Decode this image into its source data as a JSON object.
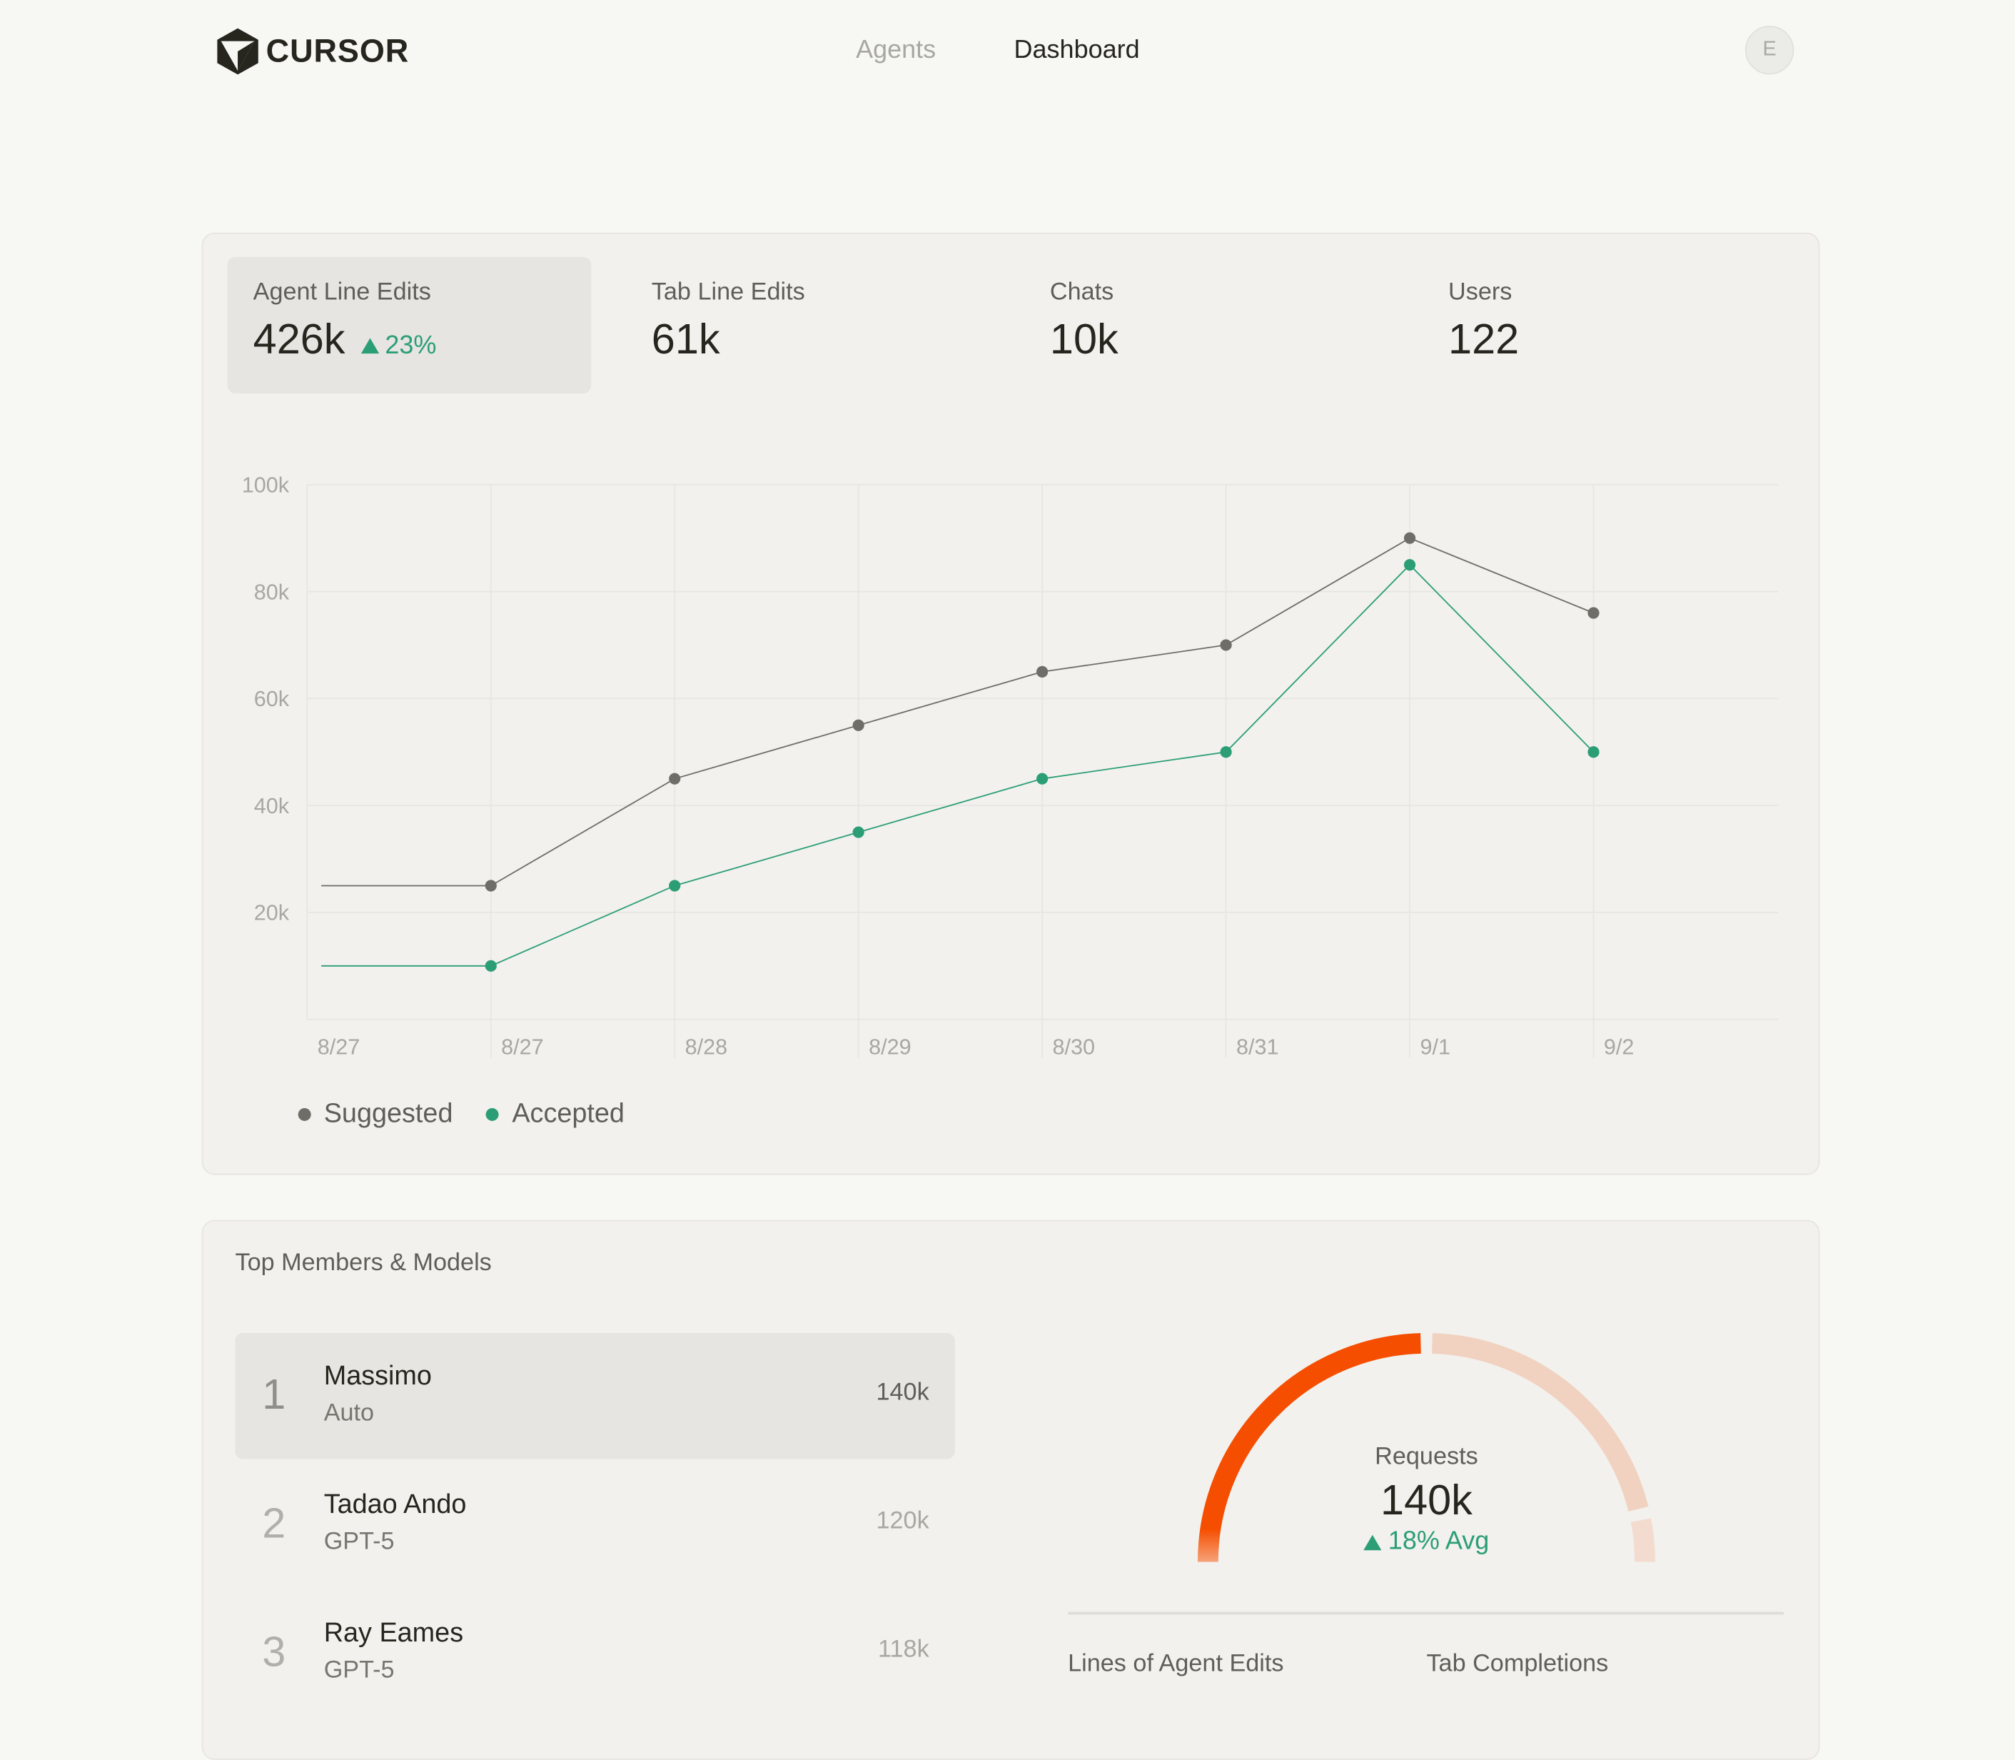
{
  "header": {
    "brand": "CURSOR",
    "nav": [
      {
        "label": "Agents",
        "active": false
      },
      {
        "label": "Dashboard",
        "active": true
      }
    ],
    "avatar_initial": "E"
  },
  "stats": [
    {
      "label": "Agent Line Edits",
      "value": "426k",
      "delta": "23%",
      "selected": true
    },
    {
      "label": "Tab Line Edits",
      "value": "61k"
    },
    {
      "label": "Chats",
      "value": "10k"
    },
    {
      "label": "Users",
      "value": "122"
    }
  ],
  "colors": {
    "suggested": "#6e6d68",
    "accepted": "#2c9e76",
    "gauge_fill": "#f54e00",
    "gauge_track": "#f1d2c0",
    "delta": "#2c9e76"
  },
  "chart_data": {
    "type": "line",
    "x": [
      "8/27",
      "8/27",
      "8/28",
      "8/29",
      "8/30",
      "8/31",
      "9/1",
      "9/2"
    ],
    "series": [
      {
        "name": "Suggested",
        "values": [
          25000,
          25000,
          45000,
          55000,
          65000,
          70000,
          90000,
          76000
        ]
      },
      {
        "name": "Accepted",
        "values": [
          10000,
          10000,
          25000,
          35000,
          45000,
          50000,
          85000,
          50000
        ]
      }
    ],
    "yticks": [
      "20k",
      "40k",
      "60k",
      "80k",
      "100k"
    ],
    "ytick_values": [
      20000,
      40000,
      60000,
      80000,
      100000
    ],
    "ylim": [
      0,
      100000
    ],
    "grid": true,
    "legend": "bottom-left"
  },
  "top": {
    "title": "Top Members & Models",
    "rows": [
      {
        "rank": "1",
        "name": "Massimo",
        "model": "Auto",
        "value": "140k"
      },
      {
        "rank": "2",
        "name": "Tadao Ando",
        "model": "GPT-5",
        "value": "120k"
      },
      {
        "rank": "3",
        "name": "Ray Eames",
        "model": "GPT-5",
        "value": "118k"
      }
    ],
    "gauge": {
      "label": "Requests",
      "value": "140k",
      "delta": "18% Avg",
      "fill_fraction": 0.5
    },
    "bottom_labels": [
      "Lines of Agent Edits",
      "Tab Completions"
    ]
  }
}
